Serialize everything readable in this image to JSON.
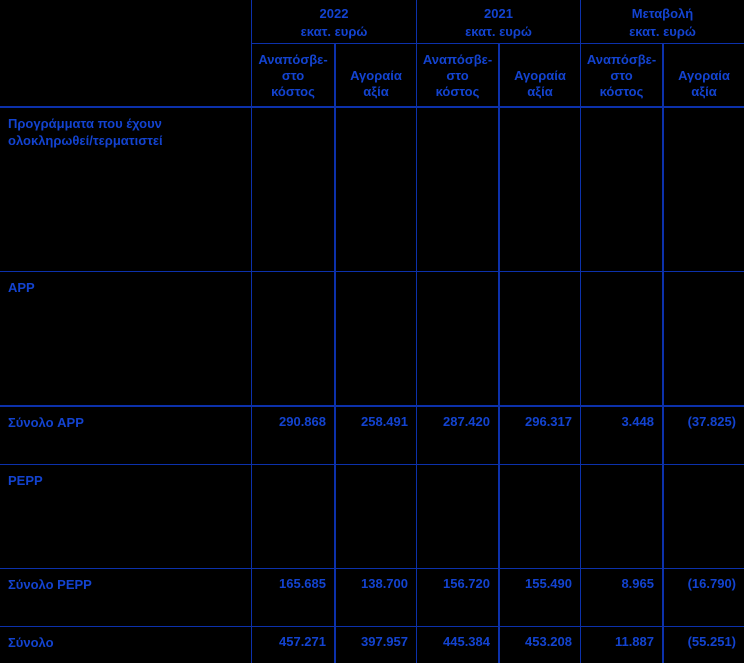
{
  "colors": {
    "background": "#000000",
    "grid": "#0c31ab",
    "text": "#1343d0"
  },
  "header": {
    "groups": [
      {
        "title": "2022",
        "subtitle": "εκατ. ευρώ"
      },
      {
        "title": "2021",
        "subtitle": "εκατ. ευρώ"
      },
      {
        "title": "Μεταβολή",
        "subtitle": "εκατ. ευρώ"
      }
    ],
    "cost_lines": [
      "Αναπόσβε-",
      "στο",
      "κόστος"
    ],
    "market_lines": [
      "Αγοραία",
      "αξία"
    ]
  },
  "rows": [
    {
      "label1": "Προγράμματα που έχουν",
      "label2": "ολοκληρωθεί/τερματιστεί",
      "values": [
        "",
        "",
        "",
        "",
        "",
        ""
      ]
    },
    {
      "label1": "APP",
      "label2": "",
      "values": [
        "",
        "",
        "",
        "",
        "",
        ""
      ]
    },
    {
      "label1": "Σύνολο APP",
      "label2": "",
      "values": [
        "290.868",
        "258.491",
        "287.420",
        "296.317",
        "3.448",
        "(37.825)"
      ]
    },
    {
      "label1": "PEPP",
      "label2": "",
      "values": [
        "",
        "",
        "",
        "",
        "",
        ""
      ]
    },
    {
      "label1": "Σύνολο PEPP",
      "label2": "",
      "values": [
        "165.685",
        "138.700",
        "156.720",
        "155.490",
        "8.965",
        "(16.790)"
      ]
    },
    {
      "label1": "Σύνολο",
      "label2": "",
      "values": [
        "457.271",
        "397.957",
        "445.384",
        "453.208",
        "11.887",
        "(55.251)"
      ]
    }
  ]
}
